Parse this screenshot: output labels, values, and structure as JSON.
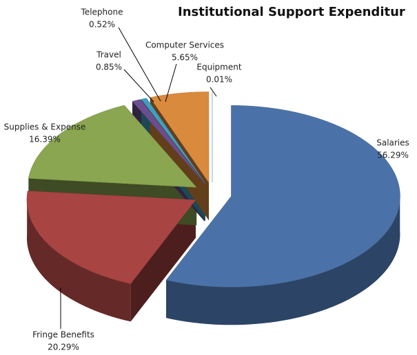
{
  "chart_data": {
    "type": "pie3d",
    "title": "Institutional Support Expenditur",
    "categories": [
      "Salaries",
      "Fringe Benefits",
      "Supplies & Expense",
      "Travel",
      "Telephone",
      "Computer Services",
      "Equipment"
    ],
    "values": [
      56.29,
      20.29,
      16.39,
      0.85,
      0.52,
      5.65,
      0.01
    ],
    "value_labels": [
      "56.29%",
      "20.29%",
      "16.39%",
      "0.85%",
      "0.52%",
      "5.65%",
      "0.01%"
    ],
    "colors": [
      "#4a72a8",
      "#a84442",
      "#8aa650",
      "#6b4e8f",
      "#3f9fc0",
      "#d98a3c",
      "#8db3e0"
    ]
  }
}
